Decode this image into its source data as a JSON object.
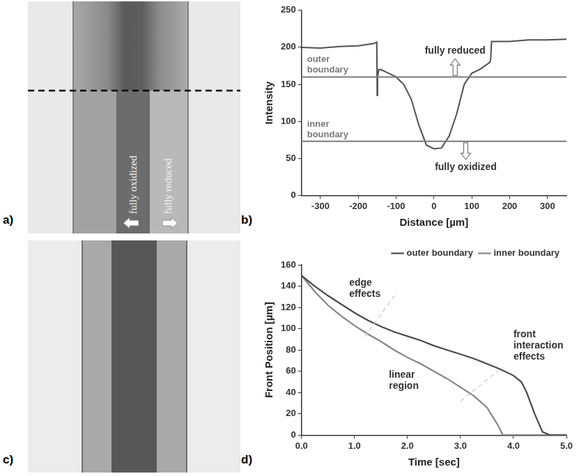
{
  "chart_data": [
    {
      "panel": "b)",
      "type": "line",
      "x_label": "Distance [µm]",
      "y_label": "Intensity",
      "x": [
        -350,
        -300,
        -250,
        -200,
        -160,
        -151,
        -150,
        -149,
        -146,
        -140,
        -120,
        -100,
        -80,
        -60,
        -40,
        -20,
        0,
        20,
        40,
        60,
        80,
        100,
        120,
        140,
        148,
        150,
        152,
        200,
        250,
        300,
        350
      ],
      "values": [
        200,
        199,
        201,
        202,
        205,
        207,
        135,
        160,
        170,
        170,
        165,
        160,
        150,
        130,
        95,
        68,
        63,
        64,
        80,
        110,
        150,
        165,
        170,
        177,
        180,
        185,
        208,
        208,
        210,
        210,
        211
      ],
      "color": "#505050",
      "xlim": [
        -350,
        350
      ],
      "xticks": [
        -300,
        -200,
        -100,
        0,
        100,
        200,
        300
      ],
      "ylim": [
        0,
        250
      ],
      "yticks": [
        0,
        50,
        100,
        150,
        200,
        250
      ],
      "grid": false,
      "lines": [
        {
          "name": "outer boundary",
          "value": 160
        },
        {
          "name": "inner boundary",
          "value": 73
        }
      ],
      "annotations": [
        "fully reduced",
        "fully oxidized"
      ]
    },
    {
      "panel": "d)",
      "type": "line",
      "x_label": "Time [sec]",
      "y_label": "Front Position [µm]",
      "series": [
        {
          "name": "outer boundary",
          "color": "#4a4a4a",
          "x": [
            0,
            0.25,
            0.5,
            0.75,
            1.0,
            1.25,
            1.5,
            1.75,
            2.0,
            2.25,
            2.5,
            2.75,
            3.0,
            3.25,
            3.5,
            3.75,
            4.0,
            4.15,
            4.25,
            4.4,
            4.55,
            4.7,
            5.0
          ],
          "values": [
            150,
            140,
            131,
            123,
            115,
            108,
            102,
            97,
            93,
            89,
            84,
            80,
            76,
            72,
            67,
            62,
            56,
            50,
            40,
            20,
            3,
            0,
            0
          ]
        },
        {
          "name": "inner boundary",
          "color": "#858585",
          "x": [
            0,
            0.25,
            0.5,
            0.75,
            1.0,
            1.25,
            1.5,
            1.75,
            2.0,
            2.25,
            2.5,
            2.75,
            3.0,
            3.25,
            3.5,
            3.7,
            3.8,
            5.0
          ],
          "values": [
            150,
            135,
            122,
            112,
            103,
            95,
            88,
            80,
            73,
            67,
            60,
            53,
            45,
            37,
            26,
            10,
            0,
            0
          ]
        }
      ],
      "xlim": [
        0,
        5
      ],
      "xticks": [
        {
          "value": 0,
          "label": "0.0"
        },
        {
          "value": 1,
          "label": "1.0"
        },
        {
          "value": 2,
          "label": "2.0"
        },
        {
          "value": 3,
          "label": "3.0"
        },
        {
          "value": 4,
          "label": "4.0"
        },
        {
          "value": 5,
          "label": "5.0"
        }
      ],
      "ylim": [
        0,
        160
      ],
      "yticks": [
        0,
        20,
        40,
        60,
        80,
        100,
        120,
        140,
        160
      ],
      "grid": false,
      "legend": "top-right",
      "annotations": [
        "edge effects",
        "linear region",
        "front interaction effects"
      ]
    }
  ],
  "images": [
    {
      "panel": "a)",
      "labels": [
        "fully oxidized",
        "fully reduced"
      ]
    },
    {
      "panel": "c)"
    }
  ]
}
